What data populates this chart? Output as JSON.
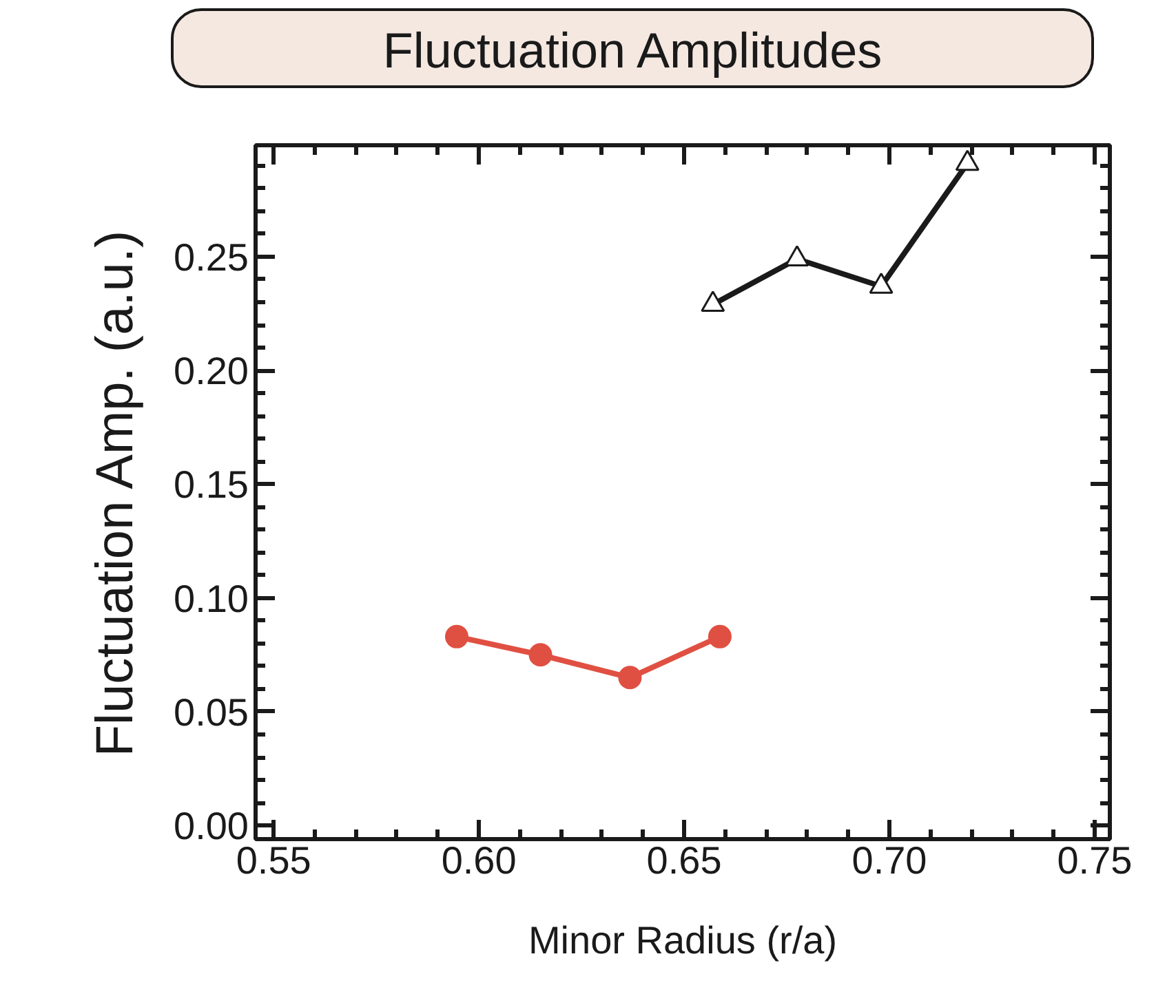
{
  "chart_data": {
    "type": "line",
    "title": "Fluctuation Amplitudes",
    "xlabel": "Minor Radius (r/a)",
    "ylabel": "Fluctuation Amp. (a.u.)",
    "series": [
      {
        "color": "#e05042",
        "marker": "circle",
        "x": [
          0.5946,
          0.615,
          0.6368,
          0.6587
        ],
        "values": [
          0.083,
          0.075,
          0.065,
          0.083
        ]
      },
      {
        "color": "#1a1a1a",
        "marker": "triangle",
        "x": [
          0.657,
          0.6775,
          0.698,
          0.719
        ],
        "values": [
          0.229,
          0.249,
          0.237,
          0.291
        ]
      }
    ],
    "xlim": [
      0.5456,
      0.7537
    ],
    "ylim": [
      -0.006,
      0.299
    ],
    "xticks": [
      {
        "value": 0.55,
        "label": "0.55"
      },
      {
        "value": 0.6,
        "label": "0.60"
      },
      {
        "value": 0.65,
        "label": "0.65"
      },
      {
        "value": 0.7,
        "label": "0.70"
      },
      {
        "value": 0.75,
        "label": "0.75"
      }
    ],
    "yticks": [
      {
        "value": 0,
        "label": "0.00"
      },
      {
        "value": 0.05,
        "label": "0.05"
      },
      {
        "value": 0.1,
        "label": "0.10"
      },
      {
        "value": 0.15,
        "label": "0.15"
      },
      {
        "value": 0.2,
        "label": "0.20"
      },
      {
        "value": 0.25,
        "label": "0.25"
      }
    ],
    "grid": false,
    "line_style": "solid"
  }
}
